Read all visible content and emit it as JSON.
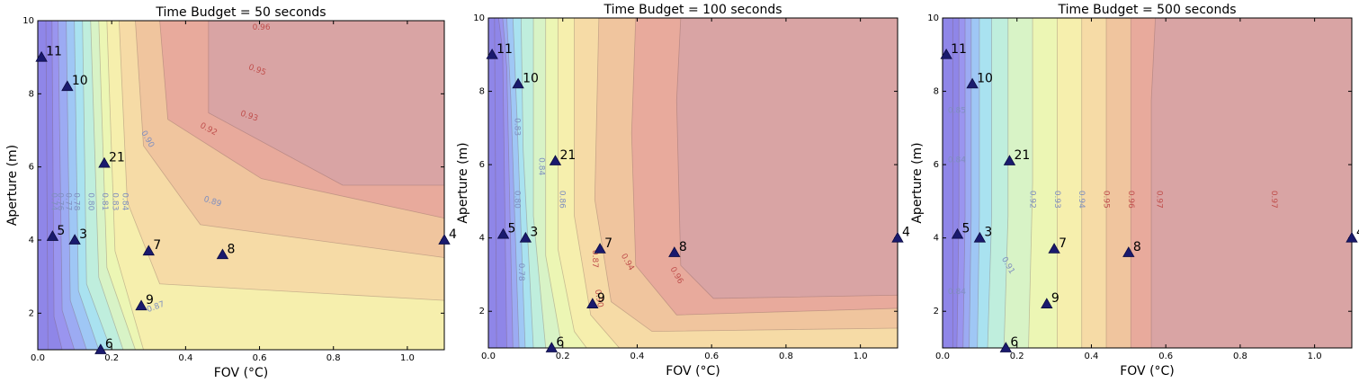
{
  "chart_data": [
    {
      "type": "contour",
      "title": "Time Budget = 50 seconds",
      "xlabel": "FOV (°C)",
      "ylabel": "Aperture (m)",
      "xlim": [
        0,
        1.1
      ],
      "ylim": [
        1,
        10
      ],
      "xticks": [
        "0.0",
        "0.2",
        "0.4",
        "0.6",
        "0.8",
        "1.0"
      ],
      "yticks": [
        "2",
        "4",
        "6",
        "8",
        "10"
      ],
      "contour_labels": [
        "0.96",
        "0.95",
        "0.93",
        "0.92",
        "0.90",
        "0.89",
        "0.87",
        "0.84",
        "0.83",
        "0.81",
        "0.80",
        "0.78",
        "0.77",
        "0.76",
        "0.74"
      ],
      "points": [
        {
          "label": "11",
          "x": 0.01,
          "y": 9.0
        },
        {
          "label": "10",
          "x": 0.08,
          "y": 8.2
        },
        {
          "label": "21",
          "x": 0.18,
          "y": 6.1
        },
        {
          "label": "5",
          "x": 0.04,
          "y": 4.1
        },
        {
          "label": "3",
          "x": 0.1,
          "y": 4.0
        },
        {
          "label": "7",
          "x": 0.3,
          "y": 3.7
        },
        {
          "label": "8",
          "x": 0.5,
          "y": 3.6
        },
        {
          "label": "4",
          "x": 1.1,
          "y": 4.0
        },
        {
          "label": "9",
          "x": 0.28,
          "y": 2.2
        },
        {
          "label": "6",
          "x": 0.17,
          "y": 1.0
        }
      ]
    },
    {
      "type": "contour",
      "title": "Time Budget = 100 seconds",
      "xlabel": "FOV (°C)",
      "ylabel": "Aperture (m)",
      "xlim": [
        0,
        1.1
      ],
      "ylim": [
        1,
        10
      ],
      "xticks": [
        "0.0",
        "0.2",
        "0.4",
        "0.6",
        "0.8",
        "1.0"
      ],
      "yticks": [
        "2",
        "4",
        "6",
        "8",
        "10"
      ],
      "contour_labels": [
        "0.94",
        "0.96",
        "0.90",
        "0.87",
        "0.86",
        "0.84",
        "0.83",
        "0.80",
        "0.78"
      ],
      "points": [
        {
          "label": "11",
          "x": 0.01,
          "y": 9.0
        },
        {
          "label": "10",
          "x": 0.08,
          "y": 8.2
        },
        {
          "label": "21",
          "x": 0.18,
          "y": 6.1
        },
        {
          "label": "5",
          "x": 0.04,
          "y": 4.1
        },
        {
          "label": "3",
          "x": 0.1,
          "y": 4.0
        },
        {
          "label": "7",
          "x": 0.3,
          "y": 3.7
        },
        {
          "label": "8",
          "x": 0.5,
          "y": 3.6
        },
        {
          "label": "4",
          "x": 1.1,
          "y": 4.0
        },
        {
          "label": "9",
          "x": 0.28,
          "y": 2.2
        },
        {
          "label": "6",
          "x": 0.17,
          "y": 1.0
        }
      ]
    },
    {
      "type": "contour",
      "title": "Time Budget = 500 seconds",
      "xlabel": "FOV (°C)",
      "ylabel": "Aperture (m)",
      "xlim": [
        0,
        1.1
      ],
      "ylim": [
        1,
        10
      ],
      "xticks": [
        "0.0",
        "0.2",
        "0.4",
        "0.6",
        "0.8",
        "1.0"
      ],
      "yticks": [
        "2",
        "4",
        "6",
        "8",
        "10"
      ],
      "contour_labels": [
        "0.97",
        "0.97",
        "0.96",
        "0.95",
        "0.94",
        "0.93",
        "0.92",
        "0.91",
        "0.85",
        "0.84",
        "0.84"
      ],
      "points": [
        {
          "label": "11",
          "x": 0.01,
          "y": 9.0
        },
        {
          "label": "10",
          "x": 0.08,
          "y": 8.2
        },
        {
          "label": "21",
          "x": 0.18,
          "y": 6.1
        },
        {
          "label": "5",
          "x": 0.04,
          "y": 4.1
        },
        {
          "label": "3",
          "x": 0.1,
          "y": 4.0
        },
        {
          "label": "7",
          "x": 0.3,
          "y": 3.7
        },
        {
          "label": "8",
          "x": 0.5,
          "y": 3.6
        },
        {
          "label": "4",
          "x": 1.1,
          "y": 4.0
        },
        {
          "label": "9",
          "x": 0.28,
          "y": 2.2
        },
        {
          "label": "6",
          "x": 0.17,
          "y": 1.0
        }
      ]
    }
  ]
}
